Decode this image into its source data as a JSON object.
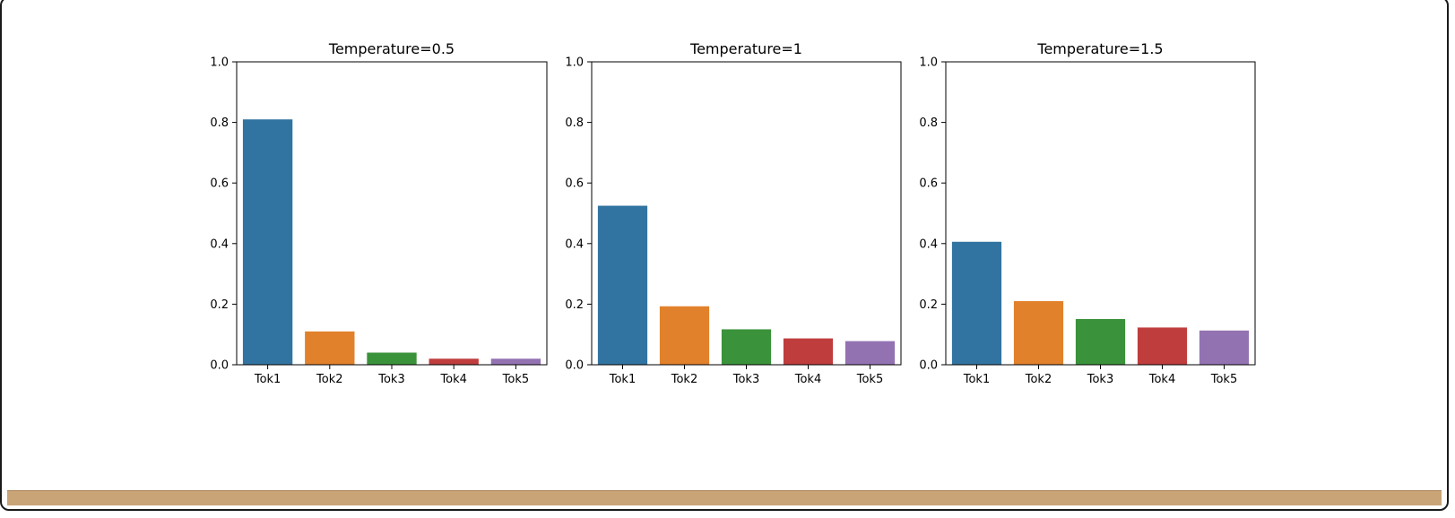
{
  "chart_data": [
    {
      "type": "bar",
      "title": "Temperature=0.5",
      "categories": [
        "Tok1",
        "Tok2",
        "Tok3",
        "Tok4",
        "Tok5"
      ],
      "values": [
        0.81,
        0.11,
        0.04,
        0.02,
        0.02
      ],
      "ylim": [
        0,
        1.0
      ],
      "yticks": [
        "0.0",
        "0.2",
        "0.4",
        "0.6",
        "0.8",
        "1.0"
      ],
      "xlabel": "",
      "ylabel": "",
      "grid": false
    },
    {
      "type": "bar",
      "title": "Temperature=1",
      "categories": [
        "Tok1",
        "Tok2",
        "Tok3",
        "Tok4",
        "Tok5"
      ],
      "values": [
        0.525,
        0.193,
        0.117,
        0.087,
        0.078
      ],
      "ylim": [
        0,
        1.0
      ],
      "yticks": [
        "0.0",
        "0.2",
        "0.4",
        "0.6",
        "0.8",
        "1.0"
      ],
      "xlabel": "",
      "ylabel": "",
      "grid": false
    },
    {
      "type": "bar",
      "title": "Temperature=1.5",
      "categories": [
        "Tok1",
        "Tok2",
        "Tok3",
        "Tok4",
        "Tok5"
      ],
      "values": [
        0.406,
        0.21,
        0.151,
        0.123,
        0.113
      ],
      "ylim": [
        0,
        1.0
      ],
      "yticks": [
        "0.0",
        "0.2",
        "0.4",
        "0.6",
        "0.8",
        "1.0"
      ],
      "xlabel": "",
      "ylabel": "",
      "grid": false
    }
  ],
  "colors": {
    "series": [
      "#3274a1",
      "#e1812c",
      "#3a923a",
      "#c03d3e",
      "#9372b2"
    ],
    "bottom_bar": "#c9a477"
  }
}
